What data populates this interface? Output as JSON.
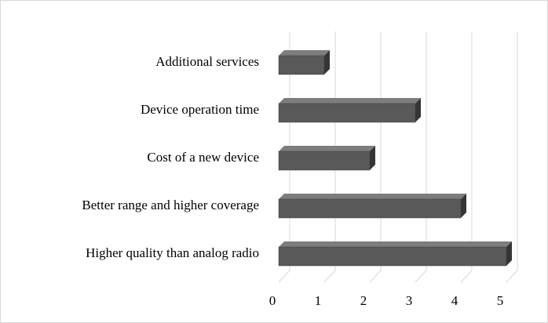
{
  "chart_data": {
    "type": "bar3d_horizontal",
    "categories": [
      "Additional services",
      "Device operation time",
      "Cost of a new device",
      "Better range and higher coverage",
      "Higher quality than analog radio"
    ],
    "values": [
      1,
      3,
      2,
      4,
      5
    ],
    "color": "#595959",
    "xlim": [
      0,
      5
    ],
    "xticks": [
      0,
      1,
      2,
      3,
      4,
      5
    ],
    "grid": true
  }
}
